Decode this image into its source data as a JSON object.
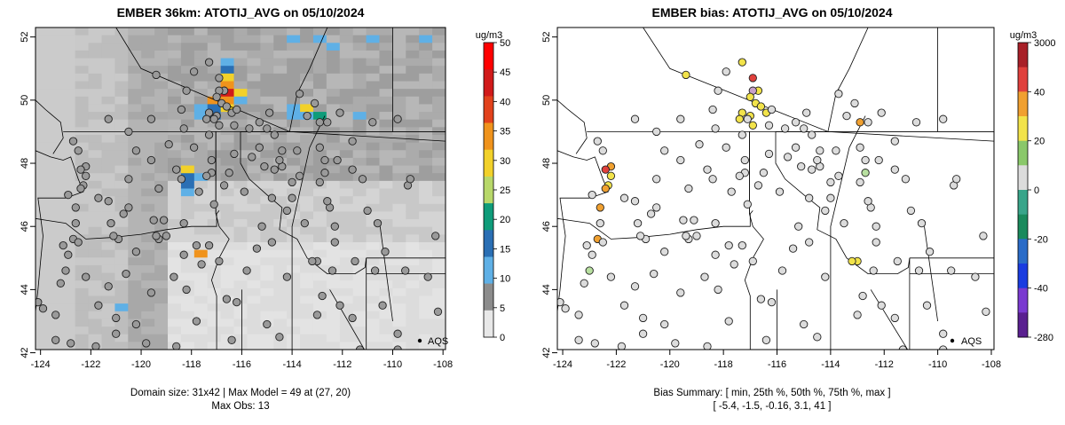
{
  "chart_data": [
    {
      "type": "heatmap",
      "title": "EMBER 36km: ATOTIJ_AVG on 05/10/2024",
      "xlim": [
        -124.2,
        -107.9
      ],
      "ylim": [
        42.1,
        52.3
      ],
      "xticks": [
        -124,
        -122,
        -120,
        -118,
        -116,
        -114,
        -112,
        -110,
        -108
      ],
      "yticks": [
        42,
        44,
        46,
        48,
        50,
        52
      ],
      "colorbar": {
        "units": "ug/m3",
        "ticks": [
          "0",
          "5",
          "10",
          "15",
          "20",
          "25",
          "30",
          "35",
          "40",
          "45",
          "50"
        ],
        "values": [
          0,
          5,
          10,
          15,
          20,
          25,
          30,
          35,
          40,
          45,
          50
        ],
        "colors": [
          "#e8e8e8",
          "#8c8c8c",
          "#5fb0e6",
          "#2a6fb4",
          "#0f9c7a",
          "#b8d86a",
          "#f2d12a",
          "#f0931c",
          "#e2421c",
          "#d11a1a",
          "#ff0000"
        ]
      },
      "legend": {
        "marker": "point",
        "label": "AQS"
      },
      "footer": [
        "Domain size: 31x42 | Max Model = 49 at (27, 20)",
        "Max Obs: 13"
      ]
    },
    {
      "type": "scatter",
      "title": "EMBER bias: ATOTIJ_AVG on 05/10/2024",
      "xlim": [
        -124.2,
        -107.9
      ],
      "ylim": [
        42.1,
        52.3
      ],
      "xticks": [
        -124,
        -122,
        -120,
        -118,
        -116,
        -114,
        -112,
        -110,
        -108
      ],
      "yticks": [
        42,
        44,
        46,
        48,
        50,
        52
      ],
      "colorbar": {
        "units": "ug/m3",
        "ticks": [
          "3000",
          "40",
          "20",
          "0",
          "-20",
          "-40",
          "-280"
        ],
        "values": [
          3000,
          40,
          20,
          0,
          -20,
          -40,
          -280
        ],
        "colors": [
          "#a82028",
          "#e0403c",
          "#f0a030",
          "#f2e34a",
          "#8ac86a",
          "#dcdcdc",
          "#39a58a",
          "#1a8a5c",
          "#2a6cc8",
          "#1a3ce0",
          "#7a3ad0",
          "#5a2090"
        ]
      },
      "legend": {
        "marker": "point",
        "label": "AQS"
      },
      "footer": [
        "Bias Summary: [ min, 25th %, 50th %, 75th %, max ]",
        "[ -5.4,  -1.5,  -0.16,  3.1,  41 ]"
      ]
    }
  ]
}
